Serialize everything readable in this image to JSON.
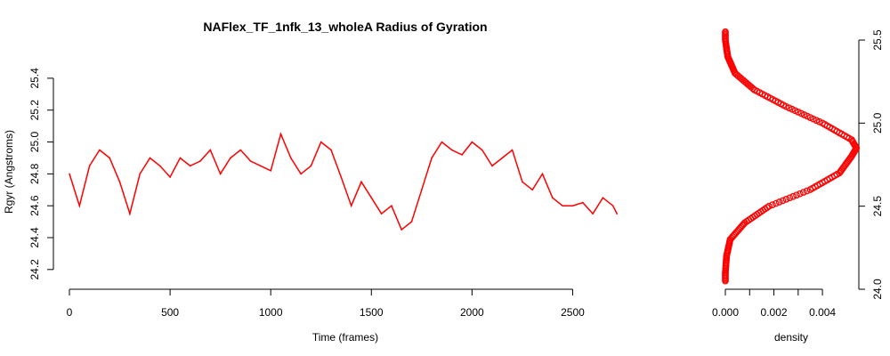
{
  "chart_data": [
    {
      "type": "line",
      "title": "NAFlex_TF_1nfk_13_wholeA Radius of Gyration",
      "xlabel": "Time (frames)",
      "ylabel": "Rgyr (Angstroms)",
      "xlim": [
        0,
        2750
      ],
      "ylim": [
        24.16,
        25.5
      ],
      "x_ticks": [
        "0",
        "500",
        "1000",
        "1500",
        "2000",
        "2500"
      ],
      "y_ticks": [
        "24.2",
        "24.4",
        "24.6",
        "24.8",
        "25.0",
        "25.2",
        "25.4"
      ],
      "line_color": "#ff0000",
      "series": [
        {
          "x": [
            0,
            50,
            100,
            150,
            200,
            250,
            300,
            350,
            400,
            450,
            500,
            550,
            600,
            650,
            700,
            750,
            800,
            850,
            900,
            950,
            1000,
            1050,
            1100,
            1150,
            1200,
            1250,
            1300,
            1350,
            1400,
            1450,
            1500,
            1550,
            1600,
            1650,
            1700,
            1750,
            1800,
            1850,
            1900,
            1950,
            2000,
            2050,
            2100,
            2150,
            2200,
            2250,
            2300,
            2350,
            2400,
            2450,
            2500,
            2550,
            2600,
            2650,
            2700,
            2720
          ],
          "values": [
            24.8,
            24.6,
            24.85,
            24.95,
            24.9,
            24.75,
            24.55,
            24.8,
            24.9,
            24.85,
            24.78,
            24.9,
            24.85,
            24.88,
            24.95,
            24.8,
            24.9,
            24.95,
            24.88,
            24.85,
            24.82,
            25.05,
            24.9,
            24.8,
            24.85,
            25.0,
            24.95,
            24.78,
            24.6,
            24.75,
            24.65,
            24.55,
            24.6,
            24.45,
            24.5,
            24.7,
            24.9,
            25.0,
            24.95,
            24.92,
            25.0,
            24.95,
            24.85,
            24.9,
            24.95,
            24.75,
            24.7,
            24.8,
            24.65,
            24.6,
            24.6,
            24.62,
            24.55,
            24.65,
            24.6,
            24.55
          ]
        }
      ]
    },
    {
      "type": "line",
      "xlabel": "density",
      "ylabel": "",
      "xlim": [
        0,
        0.0055
      ],
      "ylim": [
        24.0,
        25.5
      ],
      "x_ticks": [
        "0.000",
        "0.002",
        "0.004"
      ],
      "y_ticks": [
        "24.0",
        "24.5",
        "25.0",
        "25.5"
      ],
      "line_color": "#ff0000",
      "series": [
        {
          "y": [
            24.05,
            24.1,
            24.2,
            24.3,
            24.4,
            24.5,
            24.6,
            24.7,
            24.8,
            24.85,
            24.9,
            25.0,
            25.1,
            25.2,
            25.3,
            25.4,
            25.5,
            25.55
          ],
          "values": [
            0.0,
            0.0,
            5e-05,
            0.0002,
            0.0008,
            0.0018,
            0.0035,
            0.0047,
            0.0052,
            0.0054,
            0.0052,
            0.004,
            0.0025,
            0.0012,
            0.0004,
            0.0001,
            0.0,
            0.0
          ]
        }
      ]
    }
  ]
}
